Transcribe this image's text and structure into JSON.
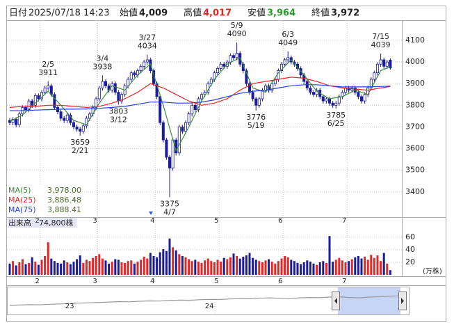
{
  "header": {
    "date_label": "日付",
    "date": "2025/07/18 14:23",
    "open_label": "始値",
    "open": "4,009",
    "high_label": "高値",
    "high": "4,017",
    "low_label": "安値",
    "low": "3,964",
    "close_label": "終値",
    "close": "3,972"
  },
  "chart_data": [
    {
      "type": "candlestick",
      "categories": [
        null,
        null,
        null,
        null,
        null,
        null,
        null,
        null,
        null,
        null,
        "2",
        null,
        null,
        null,
        null,
        null,
        null,
        null,
        null,
        null,
        null,
        null,
        null,
        null,
        null,
        null,
        null,
        null,
        "3",
        null,
        null,
        null,
        null,
        null,
        null,
        null,
        null,
        null,
        null,
        null,
        null,
        null,
        null,
        null,
        null,
        null,
        "4",
        null,
        null,
        null,
        null,
        null,
        null,
        null,
        null,
        null,
        null,
        null,
        null,
        null,
        null,
        null,
        null,
        null,
        null,
        null,
        "5",
        null,
        null,
        null,
        null,
        null,
        null,
        null,
        null,
        null,
        null,
        null,
        null,
        null,
        null,
        null,
        null,
        null,
        null,
        null,
        "6",
        null,
        null,
        null,
        null,
        null,
        null,
        null,
        null,
        null,
        null,
        null,
        null,
        null,
        null,
        null,
        null,
        null,
        null,
        null,
        "7",
        null,
        null,
        null,
        null,
        null,
        null,
        null,
        null,
        null,
        null,
        null,
        null,
        null
      ],
      "open": [
        3730,
        3720,
        3735,
        3710,
        3760,
        3790,
        3780,
        3820,
        3800,
        3845,
        3830,
        3860,
        3880,
        3890,
        3850,
        3790,
        3770,
        3740,
        3730,
        3755,
        3720,
        3700,
        3690,
        3680,
        3705,
        3740,
        3760,
        3790,
        3830,
        3880,
        3910,
        3890,
        3870,
        3900,
        3860,
        3820,
        3850,
        3890,
        3920,
        3950,
        3940,
        3960,
        3980,
        4000,
        4010,
        3960,
        3900,
        3840,
        3720,
        3640,
        3560,
        3510,
        3640,
        3580,
        3700,
        3680,
        3720,
        3760,
        3800,
        3780,
        3830,
        3850,
        3860,
        3900,
        3920,
        3950,
        3970,
        3990,
        3980,
        4000,
        4030,
        4020,
        4040,
        3990,
        3960,
        3900,
        3860,
        3830,
        3800,
        3830,
        3870,
        3890,
        3870,
        3900,
        3920,
        3960,
        3990,
        4010,
        4020,
        4000,
        3990,
        3970,
        3940,
        3910,
        3880,
        3860,
        3850,
        3870,
        3840,
        3820,
        3830,
        3810,
        3800,
        3810,
        3840,
        3860,
        3880,
        3870,
        3880,
        3860,
        3840,
        3820,
        3850,
        3880,
        3920,
        3950,
        3990,
        4010,
        3980,
        4009
      ],
      "high": [
        3740,
        3745,
        3745,
        3770,
        3800,
        3800,
        3830,
        3830,
        3855,
        3855,
        3870,
        3890,
        3911,
        3900,
        3860,
        3800,
        3780,
        3750,
        3765,
        3765,
        3730,
        3710,
        3700,
        3715,
        3750,
        3770,
        3800,
        3840,
        3890,
        3938,
        3920,
        3900,
        3910,
        3910,
        3870,
        3860,
        3900,
        3930,
        3960,
        3960,
        3970,
        3990,
        4010,
        4034,
        4020,
        3970,
        3910,
        3850,
        3730,
        3650,
        3570,
        3650,
        3650,
        3710,
        3710,
        3730,
        3770,
        3810,
        3810,
        3840,
        3860,
        3870,
        3910,
        3930,
        3960,
        3980,
        4000,
        4000,
        4010,
        4040,
        4040,
        4090,
        4050,
        4000,
        3970,
        3910,
        3870,
        3840,
        3840,
        3880,
        3900,
        3900,
        3910,
        3930,
        3970,
        4000,
        4020,
        4049,
        4030,
        4010,
        4000,
        3980,
        3950,
        3920,
        3890,
        3870,
        3880,
        3880,
        3850,
        3840,
        3840,
        3820,
        3820,
        3850,
        3870,
        3890,
        3890,
        3890,
        3890,
        3870,
        3850,
        3860,
        3890,
        3930,
        3960,
        4000,
        4039,
        4020,
        4010,
        4017
      ],
      "low": [
        3708,
        3708,
        3698,
        3698,
        3748,
        3768,
        3768,
        3788,
        3788,
        3818,
        3818,
        3848,
        3868,
        3838,
        3778,
        3758,
        3728,
        3718,
        3718,
        3708,
        3688,
        3678,
        3659,
        3668,
        3693,
        3728,
        3748,
        3778,
        3818,
        3868,
        3878,
        3858,
        3858,
        3848,
        3803,
        3808,
        3838,
        3878,
        3908,
        3928,
        3928,
        3948,
        3968,
        3988,
        3948,
        3888,
        3828,
        3708,
        3628,
        3548,
        3375,
        3498,
        3568,
        3568,
        3668,
        3668,
        3708,
        3748,
        3768,
        3768,
        3818,
        3838,
        3848,
        3888,
        3908,
        3938,
        3958,
        3968,
        3968,
        3988,
        4008,
        4008,
        3978,
        3948,
        3888,
        3848,
        3818,
        3776,
        3788,
        3818,
        3858,
        3858,
        3858,
        3888,
        3908,
        3948,
        3978,
        3998,
        3988,
        3978,
        3958,
        3928,
        3898,
        3868,
        3848,
        3838,
        3838,
        3828,
        3808,
        3808,
        3798,
        3788,
        3785,
        3798,
        3828,
        3848,
        3858,
        3858,
        3848,
        3828,
        3808,
        3808,
        3838,
        3868,
        3908,
        3938,
        3978,
        3968,
        3968,
        3964
      ],
      "close": [
        3720,
        3735,
        3710,
        3760,
        3790,
        3780,
        3820,
        3800,
        3845,
        3830,
        3860,
        3880,
        3890,
        3850,
        3790,
        3770,
        3740,
        3730,
        3755,
        3720,
        3700,
        3690,
        3680,
        3705,
        3740,
        3760,
        3790,
        3830,
        3880,
        3910,
        3890,
        3870,
        3900,
        3860,
        3820,
        3850,
        3890,
        3920,
        3950,
        3940,
        3960,
        3980,
        4000,
        4010,
        3960,
        3900,
        3840,
        3720,
        3640,
        3560,
        3510,
        3640,
        3580,
        3700,
        3680,
        3720,
        3760,
        3800,
        3780,
        3830,
        3850,
        3860,
        3900,
        3920,
        3950,
        3970,
        3990,
        3980,
        4000,
        4030,
        4020,
        4040,
        3990,
        3960,
        3900,
        3860,
        3830,
        3800,
        3830,
        3870,
        3890,
        3870,
        3900,
        3920,
        3960,
        3990,
        4010,
        4020,
        4000,
        3990,
        3970,
        3940,
        3910,
        3880,
        3860,
        3850,
        3870,
        3840,
        3820,
        3830,
        3810,
        3800,
        3810,
        3840,
        3860,
        3880,
        3870,
        3880,
        3860,
        3840,
        3820,
        3850,
        3880,
        3920,
        3950,
        3990,
        4010,
        3980,
        4000,
        3972
      ],
      "up_color": "#ffffff",
      "down_color": "#1c1c96",
      "edge_color": "#1c1c96",
      "ylim": [
        3290,
        4190
      ],
      "yticks": [
        3400,
        3500,
        3600,
        3700,
        3800,
        3900,
        4000,
        4100
      ],
      "grid": true,
      "legend": "lower left",
      "series": [
        {
          "name": "MA(5)",
          "color": "#3c8c3c",
          "value_label": "3,978.00",
          "x": [
            0,
            4,
            8,
            12,
            16,
            20,
            24,
            28,
            32,
            36,
            40,
            44,
            48,
            52,
            56,
            60,
            64,
            68,
            72,
            76,
            80,
            84,
            88,
            92,
            96,
            100,
            104,
            108,
            112,
            116,
            119
          ],
          "values": [
            3725,
            3755,
            3810,
            3865,
            3800,
            3730,
            3710,
            3810,
            3890,
            3870,
            3940,
            3990,
            3800,
            3590,
            3700,
            3820,
            3920,
            3990,
            4020,
            3880,
            3860,
            3950,
            4010,
            3940,
            3865,
            3830,
            3840,
            3870,
            3850,
            3960,
            3978
          ]
        },
        {
          "name": "MA(25)",
          "color": "#e02828",
          "value_label": "3,886.48",
          "x": [
            0,
            4,
            8,
            12,
            16,
            20,
            24,
            28,
            32,
            36,
            40,
            44,
            48,
            52,
            56,
            60,
            64,
            68,
            72,
            76,
            80,
            84,
            88,
            92,
            96,
            100,
            104,
            108,
            112,
            116,
            119
          ],
          "values": [
            3790,
            3795,
            3795,
            3800,
            3800,
            3795,
            3790,
            3795,
            3810,
            3830,
            3860,
            3900,
            3880,
            3850,
            3820,
            3800,
            3810,
            3830,
            3870,
            3900,
            3910,
            3920,
            3930,
            3925,
            3910,
            3890,
            3880,
            3875,
            3870,
            3880,
            3886.48
          ]
        },
        {
          "name": "MA(75)",
          "color": "#2040e0",
          "value_label": "3,888.41",
          "x": [
            0,
            4,
            8,
            12,
            16,
            20,
            24,
            28,
            32,
            36,
            40,
            44,
            48,
            52,
            56,
            60,
            64,
            68,
            72,
            76,
            80,
            84,
            88,
            92,
            96,
            100,
            104,
            108,
            112,
            116,
            119
          ],
          "values": [
            3775,
            3775,
            3778,
            3780,
            3782,
            3782,
            3783,
            3786,
            3790,
            3795,
            3805,
            3815,
            3815,
            3810,
            3810,
            3815,
            3825,
            3840,
            3855,
            3865,
            3870,
            3880,
            3890,
            3895,
            3895,
            3890,
            3885,
            3885,
            3885,
            3887,
            3888.41
          ]
        }
      ],
      "annotations": [
        {
          "index": 12,
          "date": "2/5",
          "value": 3911,
          "kind": "high"
        },
        {
          "index": 22,
          "date": "2/21",
          "value": 3659,
          "kind": "low"
        },
        {
          "index": 29,
          "date": "3/4",
          "value": 3938,
          "kind": "high"
        },
        {
          "index": 34,
          "date": "3/12",
          "value": 3803,
          "kind": "low"
        },
        {
          "index": 43,
          "date": "3/27",
          "value": 4034,
          "kind": "high"
        },
        {
          "index": 50,
          "date": "4/7",
          "value": 3375,
          "kind": "low"
        },
        {
          "index": 71,
          "date": "5/9",
          "value": 4090,
          "kind": "high"
        },
        {
          "index": 77,
          "date": "5/19",
          "value": 3776,
          "kind": "low"
        },
        {
          "index": 87,
          "date": "6/3",
          "value": 4049,
          "kind": "high"
        },
        {
          "index": 102,
          "date": "6/25",
          "value": 3785,
          "kind": "low"
        },
        {
          "index": 116,
          "date": "7/15",
          "value": 4039,
          "kind": "high"
        }
      ]
    },
    {
      "type": "bar",
      "title": "出来高",
      "latest_label": "74,800株",
      "unit": "(万株)",
      "categories": [
        null,
        null,
        null,
        null,
        null,
        null,
        null,
        null,
        null,
        null,
        "2",
        null,
        null,
        null,
        null,
        null,
        null,
        null,
        null,
        null,
        null,
        null,
        null,
        null,
        null,
        null,
        null,
        null,
        "3",
        null,
        null,
        null,
        null,
        null,
        null,
        null,
        null,
        null,
        null,
        null,
        null,
        null,
        null,
        null,
        null,
        null,
        "4",
        null,
        null,
        null,
        null,
        null,
        null,
        null,
        null,
        null,
        null,
        null,
        null,
        null,
        null,
        null,
        null,
        null,
        null,
        null,
        "5",
        null,
        null,
        null,
        null,
        null,
        null,
        null,
        null,
        null,
        null,
        null,
        null,
        null,
        null,
        null,
        null,
        null,
        null,
        null,
        "6",
        null,
        null,
        null,
        null,
        null,
        null,
        null,
        null,
        null,
        null,
        null,
        null,
        null,
        null,
        null,
        null,
        null,
        null,
        null,
        "7",
        null,
        null,
        null,
        null,
        null,
        null,
        null,
        null,
        null,
        null,
        null,
        null,
        null
      ],
      "values": [
        18,
        22,
        15,
        20,
        25,
        17,
        19,
        28,
        21,
        16,
        24,
        30,
        52,
        26,
        22,
        19,
        18,
        23,
        20,
        17,
        21,
        25,
        31,
        19,
        24,
        22,
        27,
        30,
        33,
        26,
        23,
        18,
        21,
        25,
        24,
        20,
        19,
        22,
        23,
        18,
        21,
        24,
        29,
        26,
        35,
        30,
        28,
        36,
        41,
        38,
        58,
        44,
        39,
        33,
        30,
        28,
        25,
        22,
        24,
        21,
        19,
        23,
        26,
        22,
        20,
        24,
        21,
        27,
        25,
        28,
        34,
        30,
        26,
        29,
        31,
        35,
        27,
        24,
        22,
        20,
        23,
        25,
        21,
        18,
        22,
        26,
        30,
        28,
        24,
        22,
        19,
        17,
        20,
        23,
        21,
        18,
        16,
        20,
        22,
        19,
        62,
        21,
        24,
        27,
        23,
        20,
        22,
        25,
        28,
        30,
        26,
        29,
        24,
        32,
        27,
        31,
        22,
        35,
        18,
        7.48
      ],
      "up_color": "#e02828",
      "down_color": "#1c1c96",
      "ylim": [
        0,
        90
      ],
      "yticks": [
        20,
        40,
        60
      ],
      "grid": true
    },
    {
      "type": "line",
      "categories": [
        null,
        null,
        null,
        null,
        null,
        null,
        "23",
        null,
        null,
        null,
        null,
        null,
        null,
        null,
        null,
        null,
        null,
        null,
        null,
        null,
        "24",
        null,
        null,
        null,
        null,
        null,
        null,
        null,
        null,
        null,
        null,
        null,
        null,
        null,
        null,
        null,
        null,
        null,
        null,
        null
      ],
      "values": [
        2700,
        2750,
        2800,
        2780,
        2850,
        2900,
        2950,
        3000,
        3050,
        3100,
        3150,
        3200,
        3180,
        3250,
        3300,
        3280,
        3350,
        3400,
        3380,
        3450,
        3500,
        3480,
        3550,
        3600,
        3580,
        3650,
        3700,
        3650,
        3600,
        3700,
        3750,
        3720,
        3800,
        3850,
        3750,
        3700,
        3800,
        3850,
        3900,
        3972
      ],
      "color": "#999999",
      "ylim": [
        1500,
        5000
      ]
    }
  ]
}
